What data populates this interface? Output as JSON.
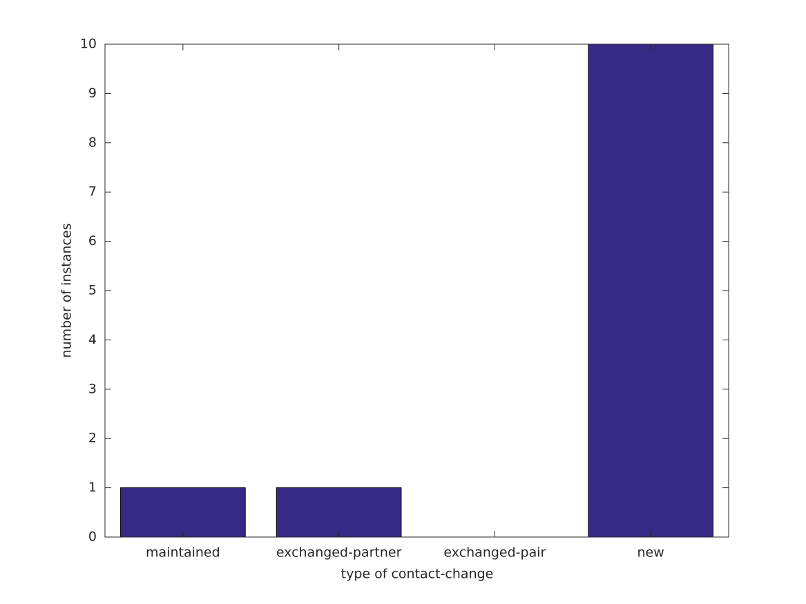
{
  "chart_data": {
    "type": "bar",
    "xlabel": "type of contact-change",
    "ylabel": "number of instances",
    "categories": [
      "maintained",
      "exchanged-partner",
      "exchanged-pair",
      "new"
    ],
    "values": [
      1,
      1,
      0,
      10
    ],
    "color": "#372a87",
    "ylim": [
      0,
      10
    ],
    "yticks": [
      0,
      1,
      2,
      3,
      4,
      5,
      6,
      7,
      8,
      9,
      10
    ],
    "grid": false
  }
}
